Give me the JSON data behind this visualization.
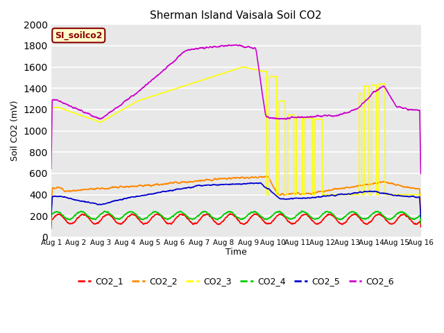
{
  "title": "Sherman Island Vaisala Soil CO2",
  "ylabel": "Soil CO2 (mV)",
  "xlabel": "Time",
  "watermark": "SI_soilco2",
  "xlim": [
    0,
    15
  ],
  "ylim": [
    0,
    2000
  ],
  "yticks": [
    0,
    200,
    400,
    600,
    800,
    1000,
    1200,
    1400,
    1600,
    1800,
    2000
  ],
  "xtick_labels": [
    "Aug 1",
    "Aug 2",
    "Aug 3",
    "Aug 4",
    "Aug 5",
    "Aug 6",
    "Aug 7",
    "Aug 8",
    "Aug 9",
    "Aug 10",
    "Aug 11",
    "Aug 12",
    "Aug 13",
    "Aug 14",
    "Aug 15",
    "Aug 16"
  ],
  "colors": {
    "CO2_1": "#ff0000",
    "CO2_2": "#ff8800",
    "CO2_3": "#ffff00",
    "CO2_4": "#00cc00",
    "CO2_5": "#0000cc",
    "CO2_6": "#cc00cc"
  },
  "background_color": "#e8e8e8",
  "grid_color": "#ffffff",
  "legend_labels": [
    "CO2_1",
    "CO2_2",
    "CO2_3",
    "CO2_4",
    "CO2_5",
    "CO2_6"
  ]
}
